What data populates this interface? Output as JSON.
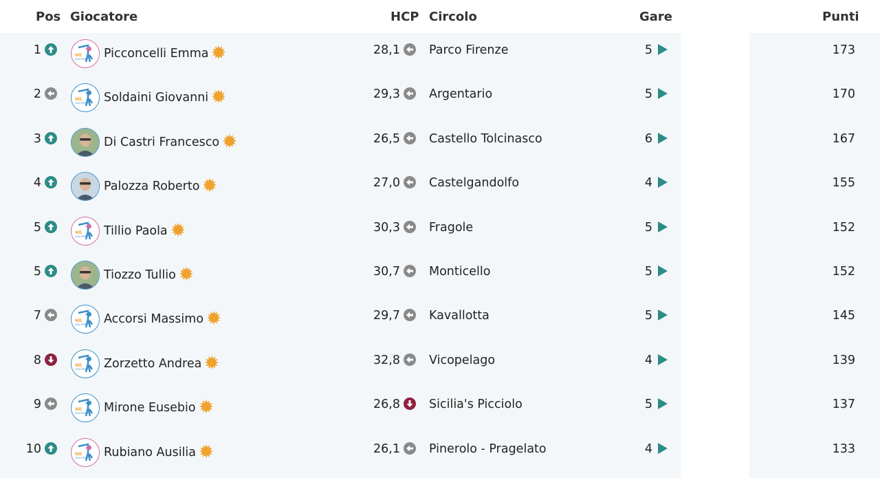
{
  "header": {
    "pos": "Pos",
    "player": "Giocatore",
    "hcp": "HCP",
    "club": "Circolo",
    "races": "Gare",
    "points": "Punti"
  },
  "colors": {
    "up": "#2c8c87",
    "same": "#8a8a8a",
    "down": "#8e2240",
    "star": "#f0a22e",
    "play": "#2c8c87"
  },
  "rows": [
    {
      "pos": "1",
      "pos_trend": "up",
      "name": "Picconcelli Emma",
      "avatar": "logo-pink",
      "hcp": "28,1",
      "hcp_trend": "same",
      "club": "Parco Firenze",
      "races": "5",
      "points": "173"
    },
    {
      "pos": "2",
      "pos_trend": "same",
      "name": "Soldaini Giovanni",
      "avatar": "logo-blue",
      "hcp": "29,3",
      "hcp_trend": "same",
      "club": "Argentario",
      "races": "5",
      "points": "170"
    },
    {
      "pos": "3",
      "pos_trend": "up",
      "name": "Di Castri Francesco",
      "avatar": "photo",
      "hcp": "26,5",
      "hcp_trend": "same",
      "club": "Castello Tolcinasco",
      "races": "6",
      "points": "167"
    },
    {
      "pos": "4",
      "pos_trend": "up",
      "name": "Palozza Roberto",
      "avatar": "photo",
      "hcp": "27,0",
      "hcp_trend": "same",
      "club": "Castelgandolfo",
      "races": "4",
      "points": "155"
    },
    {
      "pos": "5",
      "pos_trend": "up",
      "name": "Tillio Paola",
      "avatar": "logo-pink",
      "hcp": "30,3",
      "hcp_trend": "same",
      "club": "Fragole",
      "races": "5",
      "points": "152"
    },
    {
      "pos": "5",
      "pos_trend": "up",
      "name": "Tiozzo Tullio",
      "avatar": "photo",
      "hcp": "30,7",
      "hcp_trend": "same",
      "club": "Monticello",
      "races": "5",
      "points": "152"
    },
    {
      "pos": "7",
      "pos_trend": "same",
      "name": "Accorsi Massimo",
      "avatar": "logo-blue",
      "hcp": "29,7",
      "hcp_trend": "same",
      "club": "Kavallotta",
      "races": "5",
      "points": "145"
    },
    {
      "pos": "8",
      "pos_trend": "down",
      "name": "Zorzetto Andrea",
      "avatar": "logo-blue",
      "hcp": "32,8",
      "hcp_trend": "same",
      "club": "Vicopelago",
      "races": "4",
      "points": "139"
    },
    {
      "pos": "9",
      "pos_trend": "same",
      "name": "Mirone Eusebio",
      "avatar": "logo-blue",
      "hcp": "26,8",
      "hcp_trend": "down",
      "club": "Sicilia's Picciolo",
      "races": "5",
      "points": "137"
    },
    {
      "pos": "10",
      "pos_trend": "up",
      "name": "Rubiano Ausilia",
      "avatar": "logo-pink",
      "hcp": "26,1",
      "hcp_trend": "same",
      "club": "Pinerolo - Pragelato",
      "races": "4",
      "points": "133"
    }
  ]
}
